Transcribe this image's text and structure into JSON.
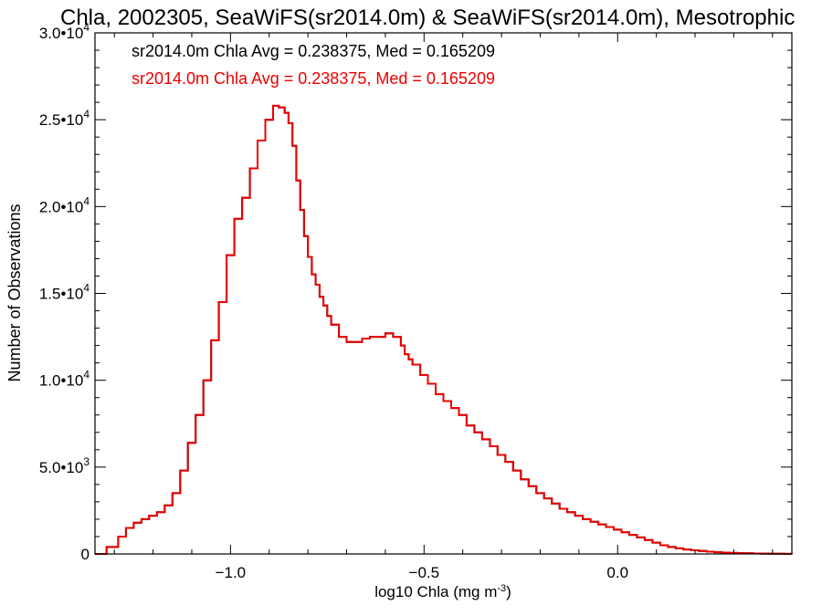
{
  "chart_data": {
    "type": "line",
    "title": "Chla, 2002305, SeaWiFS(sr2014.0m) & SeaWiFS(sr2014.0m), Mesotrophic",
    "xlabel": "log10 Chla (mg m",
    "xlabel_sup": "-3",
    "xlabel_end": ")",
    "ylabel": "Number of Observations",
    "xlim": [
      -1.35,
      0.45
    ],
    "ylim": [
      0,
      30000
    ],
    "grid": false,
    "x_ticks": [
      {
        "value": -1.0,
        "label": "−1.0"
      },
      {
        "value": -0.5,
        "label": "−0.5"
      },
      {
        "value": 0.0,
        "label": "0.0"
      }
    ],
    "y_ticks": [
      {
        "value": 0,
        "mant": "0",
        "exp": ""
      },
      {
        "value": 5000,
        "mant": "5.0•10",
        "exp": "3"
      },
      {
        "value": 10000,
        "mant": "1.0•10",
        "exp": "4"
      },
      {
        "value": 15000,
        "mant": "1.5•10",
        "exp": "4"
      },
      {
        "value": 20000,
        "mant": "2.0•10",
        "exp": "4"
      },
      {
        "value": 25000,
        "mant": "2.5•10",
        "exp": "4"
      },
      {
        "value": 30000,
        "mant": "3.0•10",
        "exp": "4"
      }
    ],
    "annotations": [
      {
        "text": "sr2014.0m Chla Avg = 0.238375, Med = 0.165209",
        "color": "#000000"
      },
      {
        "text": "sr2014.0m Chla Avg = 0.238375, Med = 0.165209",
        "color": "#ee0000"
      }
    ],
    "series": [
      {
        "color": "#000000",
        "width": 2,
        "x": [
          -1.35,
          -1.32,
          -1.29,
          -1.27,
          -1.25,
          -1.23,
          -1.21,
          -1.19,
          -1.17,
          -1.15,
          -1.13,
          -1.11,
          -1.09,
          -1.07,
          -1.05,
          -1.03,
          -1.01,
          -0.99,
          -0.97,
          -0.95,
          -0.93,
          -0.91,
          -0.89,
          -0.875,
          -0.86,
          -0.85,
          -0.84,
          -0.83,
          -0.82,
          -0.81,
          -0.8,
          -0.79,
          -0.78,
          -0.77,
          -0.76,
          -0.75,
          -0.74,
          -0.72,
          -0.7,
          -0.68,
          -0.66,
          -0.64,
          -0.62,
          -0.6,
          -0.58,
          -0.56,
          -0.55,
          -0.54,
          -0.53,
          -0.51,
          -0.49,
          -0.47,
          -0.45,
          -0.43,
          -0.41,
          -0.39,
          -0.37,
          -0.35,
          -0.33,
          -0.31,
          -0.29,
          -0.27,
          -0.25,
          -0.23,
          -0.21,
          -0.19,
          -0.17,
          -0.15,
          -0.13,
          -0.11,
          -0.09,
          -0.07,
          -0.05,
          -0.03,
          -0.01,
          0.01,
          0.03,
          0.05,
          0.07,
          0.09,
          0.11,
          0.13,
          0.15,
          0.17,
          0.19,
          0.21,
          0.23,
          0.25,
          0.27,
          0.29,
          0.31,
          0.33,
          0.35,
          0.37,
          0.39,
          0.41,
          0.43,
          0.45
        ],
        "y": [
          0,
          400,
          1000,
          1500,
          1800,
          2000,
          2200,
          2400,
          2800,
          3500,
          4800,
          6400,
          8000,
          10000,
          12300,
          14500,
          17200,
          19300,
          20500,
          22200,
          23800,
          25000,
          25800,
          25700,
          25400,
          24800,
          23500,
          21500,
          19800,
          18300,
          17100,
          16100,
          15500,
          14800,
          14300,
          13700,
          13200,
          12500,
          12200,
          12200,
          12400,
          12500,
          12500,
          12700,
          12500,
          12000,
          11500,
          11200,
          10900,
          10300,
          9800,
          9200,
          8800,
          8400,
          8000,
          7400,
          7000,
          6600,
          6200,
          5700,
          5300,
          4800,
          4300,
          3900,
          3500,
          3200,
          2900,
          2600,
          2400,
          2200,
          2000,
          1850,
          1700,
          1550,
          1400,
          1250,
          1100,
          950,
          800,
          650,
          500,
          400,
          320,
          260,
          210,
          170,
          130,
          100,
          80,
          60,
          45,
          35,
          25,
          20,
          15,
          10,
          5,
          0
        ]
      },
      {
        "color": "#ee0000",
        "width": 2,
        "x": [
          -1.35,
          -1.32,
          -1.29,
          -1.27,
          -1.25,
          -1.23,
          -1.21,
          -1.19,
          -1.17,
          -1.15,
          -1.13,
          -1.11,
          -1.09,
          -1.07,
          -1.05,
          -1.03,
          -1.01,
          -0.99,
          -0.97,
          -0.95,
          -0.93,
          -0.91,
          -0.89,
          -0.875,
          -0.86,
          -0.85,
          -0.84,
          -0.83,
          -0.82,
          -0.81,
          -0.8,
          -0.79,
          -0.78,
          -0.77,
          -0.76,
          -0.75,
          -0.74,
          -0.72,
          -0.7,
          -0.68,
          -0.66,
          -0.64,
          -0.62,
          -0.6,
          -0.58,
          -0.56,
          -0.55,
          -0.54,
          -0.53,
          -0.51,
          -0.49,
          -0.47,
          -0.45,
          -0.43,
          -0.41,
          -0.39,
          -0.37,
          -0.35,
          -0.33,
          -0.31,
          -0.29,
          -0.27,
          -0.25,
          -0.23,
          -0.21,
          -0.19,
          -0.17,
          -0.15,
          -0.13,
          -0.11,
          -0.09,
          -0.07,
          -0.05,
          -0.03,
          -0.01,
          0.01,
          0.03,
          0.05,
          0.07,
          0.09,
          0.11,
          0.13,
          0.15,
          0.17,
          0.19,
          0.21,
          0.23,
          0.25,
          0.27,
          0.29,
          0.31,
          0.33,
          0.35,
          0.37,
          0.39,
          0.41,
          0.43,
          0.45
        ],
        "y": [
          0,
          400,
          1000,
          1500,
          1800,
          2000,
          2200,
          2400,
          2800,
          3500,
          4800,
          6400,
          8000,
          10000,
          12300,
          14500,
          17200,
          19300,
          20500,
          22200,
          23800,
          25000,
          25800,
          25700,
          25400,
          24800,
          23500,
          21500,
          19800,
          18300,
          17100,
          16100,
          15500,
          14800,
          14300,
          13700,
          13200,
          12500,
          12200,
          12200,
          12400,
          12500,
          12500,
          12700,
          12500,
          12000,
          11500,
          11200,
          10900,
          10300,
          9800,
          9200,
          8800,
          8400,
          8000,
          7400,
          7000,
          6600,
          6200,
          5700,
          5300,
          4800,
          4300,
          3900,
          3500,
          3200,
          2900,
          2600,
          2400,
          2200,
          2000,
          1850,
          1700,
          1550,
          1400,
          1250,
          1100,
          950,
          800,
          650,
          500,
          400,
          320,
          260,
          210,
          170,
          130,
          100,
          80,
          60,
          45,
          35,
          25,
          20,
          15,
          10,
          5,
          0
        ]
      }
    ]
  }
}
